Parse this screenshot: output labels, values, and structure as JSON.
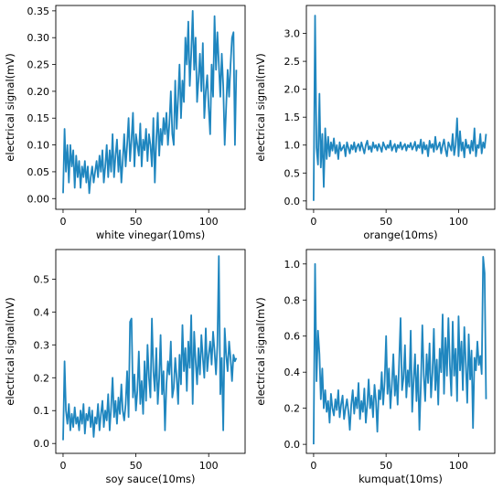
{
  "chart_data": [
    {
      "type": "line",
      "xlabel": "white vinegar(10ms)",
      "ylabel": "electrical signal(mV)",
      "xlim": [
        -5,
        125
      ],
      "ylim": [
        -0.02,
        0.36
      ],
      "xticks": [
        0,
        50,
        100
      ],
      "yticks": [
        0.0,
        0.05,
        0.1,
        0.15,
        0.2,
        0.25,
        0.3,
        0.35
      ],
      "ytick_labels": [
        "0.00",
        "0.05",
        "0.10",
        "0.15",
        "0.20",
        "0.25",
        "0.30",
        "0.35"
      ],
      "grid": false,
      "color": "#1f86bf",
      "values": [
        0.01,
        0.13,
        0.05,
        0.1,
        0.03,
        0.1,
        0.06,
        0.09,
        0.02,
        0.08,
        0.04,
        0.07,
        0.02,
        0.06,
        0.04,
        0.07,
        0.03,
        0.06,
        0.01,
        0.04,
        0.06,
        0.03,
        0.05,
        0.07,
        0.04,
        0.08,
        0.05,
        0.09,
        0.03,
        0.06,
        0.1,
        0.04,
        0.09,
        0.05,
        0.12,
        0.04,
        0.08,
        0.11,
        0.05,
        0.09,
        0.03,
        0.07,
        0.12,
        0.06,
        0.1,
        0.15,
        0.07,
        0.11,
        0.16,
        0.06,
        0.12,
        0.1,
        0.08,
        0.14,
        0.06,
        0.11,
        0.09,
        0.13,
        0.07,
        0.12,
        0.1,
        0.06,
        0.15,
        0.03,
        0.11,
        0.16,
        0.08,
        0.13,
        0.1,
        0.15,
        0.12,
        0.16,
        0.1,
        0.14,
        0.2,
        0.12,
        0.1,
        0.22,
        0.13,
        0.19,
        0.25,
        0.15,
        0.22,
        0.18,
        0.3,
        0.25,
        0.33,
        0.21,
        0.27,
        0.35,
        0.24,
        0.3,
        0.18,
        0.22,
        0.27,
        0.2,
        0.29,
        0.15,
        0.2,
        0.23,
        0.17,
        0.12,
        0.25,
        0.19,
        0.34,
        0.24,
        0.31,
        0.25,
        0.19,
        0.27,
        0.21,
        0.1,
        0.17,
        0.24,
        0.19,
        0.25,
        0.3,
        0.31,
        0.1,
        0.24
      ]
    },
    {
      "type": "line",
      "xlabel": "orange(10ms)",
      "ylabel": "electrical signal(mV)",
      "xlim": [
        -5,
        125
      ],
      "ylim": [
        -0.15,
        3.5
      ],
      "xticks": [
        0,
        50,
        100
      ],
      "yticks": [
        0.0,
        0.5,
        1.0,
        1.5,
        2.0,
        2.5,
        3.0
      ],
      "ytick_labels": [
        "0.0",
        "0.5",
        "1.0",
        "1.5",
        "2.0",
        "2.5",
        "3.0"
      ],
      "grid": false,
      "color": "#1f86bf",
      "values": [
        0.0,
        3.32,
        0.95,
        0.65,
        1.92,
        0.6,
        1.2,
        0.25,
        1.3,
        0.75,
        1.15,
        0.8,
        1.05,
        0.9,
        1.12,
        0.85,
        1.0,
        0.75,
        1.05,
        0.9,
        0.95,
        1.0,
        0.8,
        1.05,
        0.95,
        0.85,
        1.0,
        0.92,
        1.05,
        0.88,
        0.98,
        1.02,
        0.9,
        1.05,
        0.95,
        0.85,
        1.0,
        1.08,
        0.92,
        0.98,
        0.88,
        1.05,
        0.95,
        1.0,
        0.9,
        1.02,
        0.96,
        0.88,
        1.05,
        0.98,
        0.92,
        1.0,
        0.95,
        1.08,
        0.9,
        0.97,
        1.02,
        0.88,
        1.0,
        0.95,
        1.05,
        0.92,
        0.98,
        1.02,
        0.9,
        1.0,
        0.96,
        1.04,
        0.92,
        0.98,
        1.06,
        0.9,
        1.0,
        0.95,
        1.1,
        0.85,
        1.05,
        0.92,
        1.0,
        0.8,
        1.08,
        0.95,
        1.02,
        0.88,
        1.15,
        0.92,
        0.98,
        1.05,
        0.85,
        1.0,
        1.1,
        0.92,
        0.8,
        1.05,
        0.98,
        0.9,
        1.2,
        0.82,
        1.0,
        1.48,
        0.8,
        1.25,
        0.9,
        1.05,
        0.78,
        1.1,
        0.95,
        1.0,
        0.85,
        1.08,
        0.9,
        1.3,
        0.8,
        1.0,
        0.95,
        1.2,
        0.85,
        1.05,
        0.95,
        1.2
      ]
    },
    {
      "type": "line",
      "xlabel": "soy sauce(10ms)",
      "ylabel": "electrical signal(mV)",
      "xlim": [
        -5,
        125
      ],
      "ylim": [
        -0.03,
        0.59
      ],
      "xticks": [
        0,
        50,
        100
      ],
      "yticks": [
        0.0,
        0.1,
        0.2,
        0.3,
        0.4,
        0.5
      ],
      "ytick_labels": [
        "0.0",
        "0.1",
        "0.2",
        "0.3",
        "0.4",
        "0.5"
      ],
      "grid": false,
      "color": "#1f86bf",
      "values": [
        0.01,
        0.25,
        0.1,
        0.06,
        0.12,
        0.04,
        0.09,
        0.05,
        0.11,
        0.06,
        0.08,
        0.04,
        0.1,
        0.06,
        0.12,
        0.03,
        0.09,
        0.07,
        0.11,
        0.05,
        0.1,
        0.02,
        0.08,
        0.06,
        0.12,
        0.04,
        0.09,
        0.13,
        0.05,
        0.1,
        0.07,
        0.15,
        0.04,
        0.11,
        0.2,
        0.08,
        0.13,
        0.06,
        0.14,
        0.09,
        0.18,
        0.1,
        0.07,
        0.12,
        0.22,
        0.08,
        0.37,
        0.38,
        0.14,
        0.21,
        0.1,
        0.16,
        0.28,
        0.12,
        0.19,
        0.09,
        0.25,
        0.13,
        0.3,
        0.2,
        0.14,
        0.38,
        0.22,
        0.16,
        0.29,
        0.12,
        0.2,
        0.33,
        0.15,
        0.22,
        0.04,
        0.18,
        0.25,
        0.21,
        0.31,
        0.14,
        0.17,
        0.26,
        0.2,
        0.12,
        0.27,
        0.18,
        0.36,
        0.22,
        0.29,
        0.16,
        0.31,
        0.23,
        0.39,
        0.12,
        0.34,
        0.25,
        0.18,
        0.29,
        0.21,
        0.33,
        0.26,
        0.2,
        0.35,
        0.22,
        0.27,
        0.31,
        0.24,
        0.34,
        0.28,
        0.21,
        0.3,
        0.57,
        0.15,
        0.26,
        0.04,
        0.35,
        0.27,
        0.22,
        0.31,
        0.26,
        0.19,
        0.27,
        0.25,
        0.26
      ]
    },
    {
      "type": "line",
      "xlabel": "kumquat(10ms)",
      "ylabel": "electrical signal(mV)",
      "xlim": [
        -5,
        125
      ],
      "ylim": [
        -0.05,
        1.08
      ],
      "xticks": [
        0,
        50,
        100
      ],
      "yticks": [
        0.0,
        0.2,
        0.4,
        0.6,
        0.8,
        1.0
      ],
      "ytick_labels": [
        "0.0",
        "0.2",
        "0.4",
        "0.6",
        "0.8",
        "1.0"
      ],
      "grid": false,
      "color": "#1f86bf",
      "values": [
        0.0,
        1.0,
        0.35,
        0.63,
        0.5,
        0.25,
        0.42,
        0.2,
        0.3,
        0.18,
        0.24,
        0.12,
        0.28,
        0.2,
        0.16,
        0.25,
        0.19,
        0.3,
        0.15,
        0.22,
        0.27,
        0.14,
        0.2,
        0.25,
        0.18,
        0.08,
        0.22,
        0.3,
        0.17,
        0.26,
        0.2,
        0.34,
        0.14,
        0.24,
        0.18,
        0.31,
        0.12,
        0.22,
        0.36,
        0.2,
        0.27,
        0.15,
        0.33,
        0.24,
        0.07,
        0.3,
        0.25,
        0.4,
        0.22,
        0.35,
        0.6,
        0.28,
        0.42,
        0.2,
        0.33,
        0.5,
        0.27,
        0.38,
        0.22,
        0.45,
        0.7,
        0.3,
        0.37,
        0.55,
        0.26,
        0.41,
        0.32,
        0.63,
        0.18,
        0.36,
        0.5,
        0.24,
        0.44,
        0.08,
        0.33,
        0.66,
        0.38,
        0.24,
        0.5,
        0.34,
        0.56,
        0.26,
        0.4,
        0.64,
        0.3,
        0.47,
        0.22,
        0.53,
        0.4,
        0.72,
        0.28,
        0.59,
        0.38,
        0.7,
        0.44,
        0.27,
        0.68,
        0.38,
        0.53,
        0.24,
        0.71,
        0.41,
        0.57,
        0.3,
        0.65,
        0.45,
        0.23,
        0.61,
        0.36,
        0.52,
        0.09,
        0.48,
        0.41,
        0.57,
        0.44,
        0.49,
        0.39,
        1.04,
        0.95,
        0.25
      ]
    }
  ]
}
